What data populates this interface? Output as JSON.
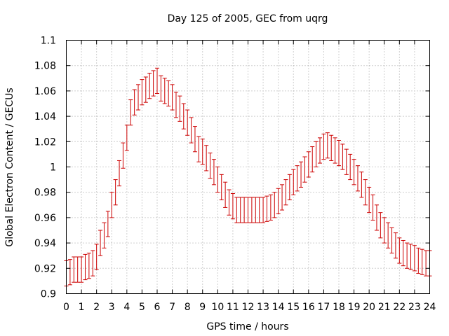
{
  "chart_data": {
    "type": "scatter",
    "title": "Day 125 of 2005, GEC from uqrg",
    "xlabel": "GPS time / hours",
    "ylabel": "Global Electron Content / GECUs",
    "xlim": [
      0,
      24
    ],
    "ylim": [
      0.9,
      1.1
    ],
    "x_ticks": [
      "0",
      "1",
      "2",
      "3",
      "4",
      "5",
      "6",
      "7",
      "8",
      "9",
      "10",
      "11",
      "12",
      "13",
      "14",
      "15",
      "16",
      "17",
      "18",
      "19",
      "20",
      "21",
      "22",
      "23",
      "24"
    ],
    "y_ticks": [
      "0.9",
      "0.92",
      "0.94",
      "0.96",
      "0.98",
      "1",
      "1.02",
      "1.04",
      "1.06",
      "1.08",
      "1.1"
    ],
    "grid": true,
    "series_color": "#cc0000",
    "error_halfwidth": 0.01,
    "series": [
      {
        "x": [
          0,
          0.25,
          0.5,
          0.75,
          1,
          1.25,
          1.5,
          1.75,
          2,
          2.25,
          2.5,
          2.75,
          3,
          3.25,
          3.5,
          3.75,
          4,
          4.25,
          4.5,
          4.75,
          5,
          5.25,
          5.5,
          5.75,
          6,
          6.25,
          6.5,
          6.75,
          7,
          7.25,
          7.5,
          7.75,
          8,
          8.25,
          8.5,
          8.75,
          9,
          9.25,
          9.5,
          9.75,
          10,
          10.25,
          10.5,
          10.75,
          11,
          11.25,
          11.5,
          11.75,
          12,
          12.25,
          12.5,
          12.75,
          13,
          13.25,
          13.5,
          13.75,
          14,
          14.25,
          14.5,
          14.75,
          15,
          15.25,
          15.5,
          15.75,
          16,
          16.25,
          16.5,
          16.75,
          17,
          17.25,
          17.5,
          17.75,
          18,
          18.25,
          18.5,
          18.75,
          19,
          19.25,
          19.5,
          19.75,
          20,
          20.25,
          20.5,
          20.75,
          21,
          21.25,
          21.5,
          21.75,
          22,
          22.25,
          22.5,
          22.75,
          23,
          23.25,
          23.5,
          23.75,
          24
        ],
        "y": [
          0.916,
          0.917,
          0.919,
          0.919,
          0.919,
          0.921,
          0.922,
          0.924,
          0.929,
          0.94,
          0.946,
          0.955,
          0.97,
          0.98,
          0.995,
          1.009,
          1.023,
          1.043,
          1.051,
          1.055,
          1.059,
          1.061,
          1.064,
          1.066,
          1.068,
          1.062,
          1.06,
          1.058,
          1.055,
          1.049,
          1.046,
          1.04,
          1.035,
          1.029,
          1.022,
          1.014,
          1.012,
          1.007,
          1.001,
          0.996,
          0.99,
          0.984,
          0.978,
          0.972,
          0.969,
          0.966,
          0.966,
          0.966,
          0.966,
          0.966,
          0.966,
          0.966,
          0.966,
          0.967,
          0.968,
          0.97,
          0.973,
          0.976,
          0.98,
          0.984,
          0.988,
          0.991,
          0.994,
          0.998,
          1.002,
          1.006,
          1.01,
          1.013,
          1.016,
          1.017,
          1.015,
          1.013,
          1.011,
          1.008,
          1.004,
          1,
          0.996,
          0.991,
          0.986,
          0.98,
          0.974,
          0.968,
          0.96,
          0.954,
          0.95,
          0.946,
          0.942,
          0.938,
          0.934,
          0.932,
          0.93,
          0.929,
          0.928,
          0.926,
          0.925,
          0.924,
          0.924
        ]
      }
    ]
  }
}
